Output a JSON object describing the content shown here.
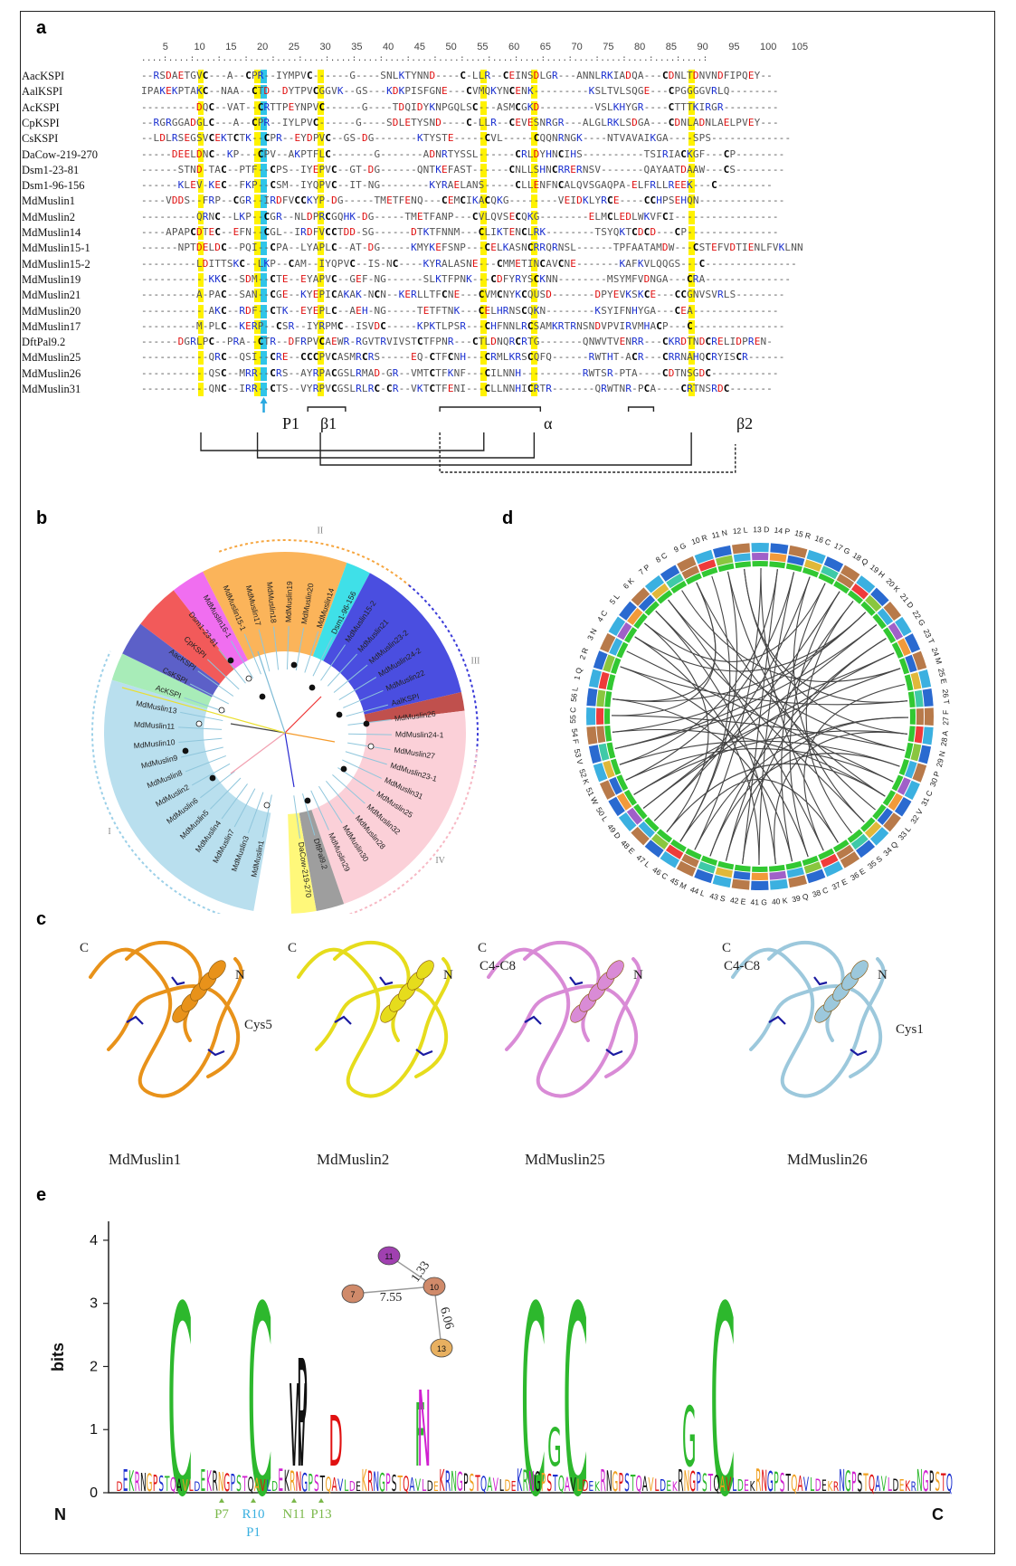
{
  "panels": {
    "a": "a",
    "b": "b",
    "c": "c",
    "d": "d",
    "e": "e"
  },
  "alignment": {
    "positions": [
      "5",
      "10",
      "15",
      "20",
      "25",
      "30",
      "35",
      "40",
      "45",
      "50",
      "55",
      "60",
      "65",
      "70",
      "75",
      "80",
      "85",
      "90",
      "95",
      "100",
      "105"
    ],
    "rows": [
      {
        "name": "AacKSPI",
        "seq": "--RSDAETGVC---A--CPR--IYMPVC------G----SNLKTYNND----C-LLR--CEINSDLGR---ANNLRKIADQA---CDNLTDNVNDFIPQEY--"
      },
      {
        "name": "AalKSPI",
        "seq": "IPAKEKPTAKC--NAA--CTD--DYTPVCGGVK--GS---KDKPISFGNE---CVMQKYNCENK---------KSLTVLSQGE---CPGGGGVRLQ--------"
      },
      {
        "name": "AcKSPI",
        "seq": "---------DQC--VAT--CRTTPEYNPVC------G----TDQIDYKNPGQLSC---ASMCGKD---------VSLKHYGR----CTTTKIRGR---------"
      },
      {
        "name": "CpKSPI",
        "seq": "--RGRGGADGLC---A--CPR--IYLPVC------G----SDLETYSND----C-LLR--CEVESNRGR---ALGLRKLSDGA---CDNLADNLAELPVEY---"
      },
      {
        "name": "CsKSPI",
        "seq": "--LDLRSEGSVCEKTCTK--CPR--EYDPVC--GS-DG-------KTYSTE-----CVL-----CQQNRNGK----NTVAVAIKGA----SPS-------------"
      },
      {
        "name": "DaCow-219-270",
        "seq": "-----DEELDNC--KP---CPV--AKPTFLC-------G-------ADNRTYSSL------CRLDYHNCIHS----------TSIRIACKGF---CP--------"
      },
      {
        "name": "Dsm1-23-81",
        "seq": "------STND-TAC--PTF--CPS--IYEPVC--GT-DG------QNTKEFAST------CNLLSHNCRRERNSV-------QAYAATDAAW---CS--------"
      },
      {
        "name": "Dsm1-96-156",
        "seq": "------KLEV-KEC--FKP--CSM--IYQPVC--IT-NG--------KYRAELANS-----CLLENFNCALQVSGAQPA-ELFRLLREEK---C---------"
      },
      {
        "name": "MdMuslin1",
        "seq": "----VDDS--FRP--CGR--IRDFVCCKYP-DG-----TMETFENQ---CEMCIKACQKG--------VEIDKLYRCE----CCHPSEHQN--------------"
      },
      {
        "name": "MdMuslin2",
        "seq": "---------QRNC--LKP--CGR--NLDPRCGQHK-DG-----TMETFANP---CVLQVSECQKG--------ELMCLEDLWKVFCI-----------------"
      },
      {
        "name": "MdMuslin14",
        "seq": "----APAPCDTEC--EFN--CGL--IRDFVCCTDD-SG------DTKTFNNM---CLIKTENCLRK--------TSYQKTCDCD---CP---------------"
      },
      {
        "name": "MdMuslin15-1",
        "seq": "------NPTDELDC--PQI--CPA--LYAPLC--AT-DG-----KMYKEFSNP---CELKASNCRRQRNSL------TPFAATAMDW---CSTEFVDTIENLFVKLNN"
      },
      {
        "name": "MdMuslin15-2",
        "seq": "---------LDITTSKC--LKP--CAM--IYQPVC--IS-NC----KYRALASNE---CMMETINCAVCNE-------KAFKVLQQGS---C---------------"
      },
      {
        "name": "MdMuslin19",
        "seq": "-----------KKC--SDM--CTE--EYAPVC--GEF-NG------SLKTFPNK---CDFYRYSCKNN--------MSYMFVDNGA---CRA--------------"
      },
      {
        "name": "MdMuslin21",
        "seq": "---------A-PAC--SAN--CGE--KYEPICAKAK-NCN--KERLLTFCNE---CVMCNYKCQUSD-------DPYEVKSKCE---CCGNVSVRLS--------"
      },
      {
        "name": "MdMuslin20",
        "seq": "-----------AKC--RDF--CTK--EYEPLC--AEH-NG-----TETFTNK---CELHRNSCQKN--------KSYIFNHYGA---CEA--------------"
      },
      {
        "name": "MdMuslin17",
        "seq": "---------M-PLC--KERP--CSR--IYRPMC--ISVDC-----KPKTLPSR---CHFNNLRCSAMKRTRNSNDVPVIRVMHACP---C---------------"
      },
      {
        "name": "DftPal9.2",
        "seq": "------DGRLPC--PRA--CTR--DFRPVCAEWR-RGVTRVIVSTCTFPNR---CTLDNQRCRTG-------QNWVTVENRR---CKRDTNDCRELIDPREN-"
      },
      {
        "name": "MdMuslin25",
        "seq": "-----------QRC--QSI--CRE--CCCPVCASMRCRS-----EQ-CTFCNH---CRMLKRSCQFQ------RWTHT-ACR---CRRNAHQCRYISCR------"
      },
      {
        "name": "MdMuslin26",
        "seq": "-----------QSC--MRR--CRS--AYRPACGSLRMAD-GR--VMTCTFKNF---CILNNH----------RWTSR-PTA----CDTNSGDC-----------"
      },
      {
        "name": "MdMuslin31",
        "seq": "-----------QNC--IRR--CTS--VYRPVCGSLRLRC-CR--VKTCTFENI---CLLNNHICRTR-------QRWTNR-PCA----CRTNSRDC-------"
      }
    ],
    "ss_labels": {
      "p1": "P1",
      "b1": "β1",
      "alpha": "α",
      "b2": "β2"
    }
  },
  "tree": {
    "labels": [
      "MdMuslin1",
      "MdMuslin3",
      "MdMuslin7",
      "MdMuslin4",
      "MdMuslin5",
      "MdMuslin6",
      "MdMuslin2",
      "MdMuslin8",
      "MdMuslin9",
      "MdMuslin10",
      "MdMuslin11",
      "MdMuslin13",
      "AcKSPI",
      "CsKSPI",
      "AacKSPI",
      "CpKSPI",
      "Dsm1-23-81",
      "MdMuslin16-1",
      "MdMuslin15-1",
      "MdMuslin17",
      "MdMuslin18",
      "MdMuslin19",
      "MdMuslin20",
      "MdMuslin14",
      "Dsm1-96-156",
      "MdMuslin15-2",
      "MdMuslin21",
      "MdMuslin23-2",
      "MdMuslin24-2",
      "MdMuslin22",
      "AalKSPI",
      "MdMuslin26",
      "MdMuslin24-1",
      "MdMuslin27",
      "MdMuslin23-1",
      "MdMuslin31",
      "MdMuslin25",
      "MdMuslin32",
      "MdMuslin28",
      "MdMuslin30",
      "MdMuslin29",
      "DftPal9.2",
      "DaCow-219-270"
    ],
    "groups": [
      "I",
      "II",
      "III",
      "IV"
    ]
  },
  "circos": {
    "residues": [
      "1 Q",
      "2 R",
      "3 N",
      "4 C",
      "5 L",
      "6 K",
      "7 P",
      "8 C",
      "9 G",
      "10 R",
      "11 N",
      "12 L",
      "13 D",
      "14 P",
      "15 R",
      "16 C",
      "17 G",
      "18 Q",
      "19 H",
      "20 K",
      "21 D",
      "22 G",
      "23 T",
      "24 M",
      "25 E",
      "26 T",
      "27 F",
      "28 A",
      "29 N",
      "30 P",
      "31 C",
      "32 V",
      "33 L",
      "34 Q",
      "35 S",
      "36 E",
      "37 E",
      "38 C",
      "39 Q",
      "40 K",
      "41 G",
      "42 E",
      "43 S",
      "44 L",
      "45 M",
      "46 C",
      "47 L",
      "48 E",
      "49 D",
      "50 L",
      "51 W",
      "52 K",
      "53 V",
      "54 F",
      "55 C",
      "56 L"
    ]
  },
  "structures": [
    {
      "name": "MdMuslin1",
      "color": "#e8921a",
      "labels": {
        "c": "C",
        "n": "N",
        "extra": "Cys5"
      }
    },
    {
      "name": "MdMuslin2",
      "color": "#e6dc1c",
      "labels": {
        "c": "C",
        "n": "N"
      }
    },
    {
      "name": "MdMuslin25",
      "color": "#d98bd6",
      "labels": {
        "c": "C",
        "n": "N",
        "extra": "C4-C8"
      }
    },
    {
      "name": "MdMuslin26",
      "color": "#9cc8dc",
      "labels": {
        "c": "C",
        "n": "N",
        "extra": "C4-C8",
        "extra2": "Cys1"
      }
    }
  ],
  "logo": {
    "ylabel": "bits",
    "yticks": [
      "0",
      "1",
      "2",
      "3",
      "4"
    ],
    "n_label": "N",
    "c_label": "C",
    "bottom_labels": {
      "p7": "P7",
      "r10": "R10",
      "n11": "N11",
      "p13": "P13",
      "p1": "P1"
    },
    "network": {
      "nodes": [
        "11",
        "10",
        "7",
        "13"
      ],
      "edges": [
        "1.33",
        "7.55",
        "6.06"
      ]
    }
  }
}
